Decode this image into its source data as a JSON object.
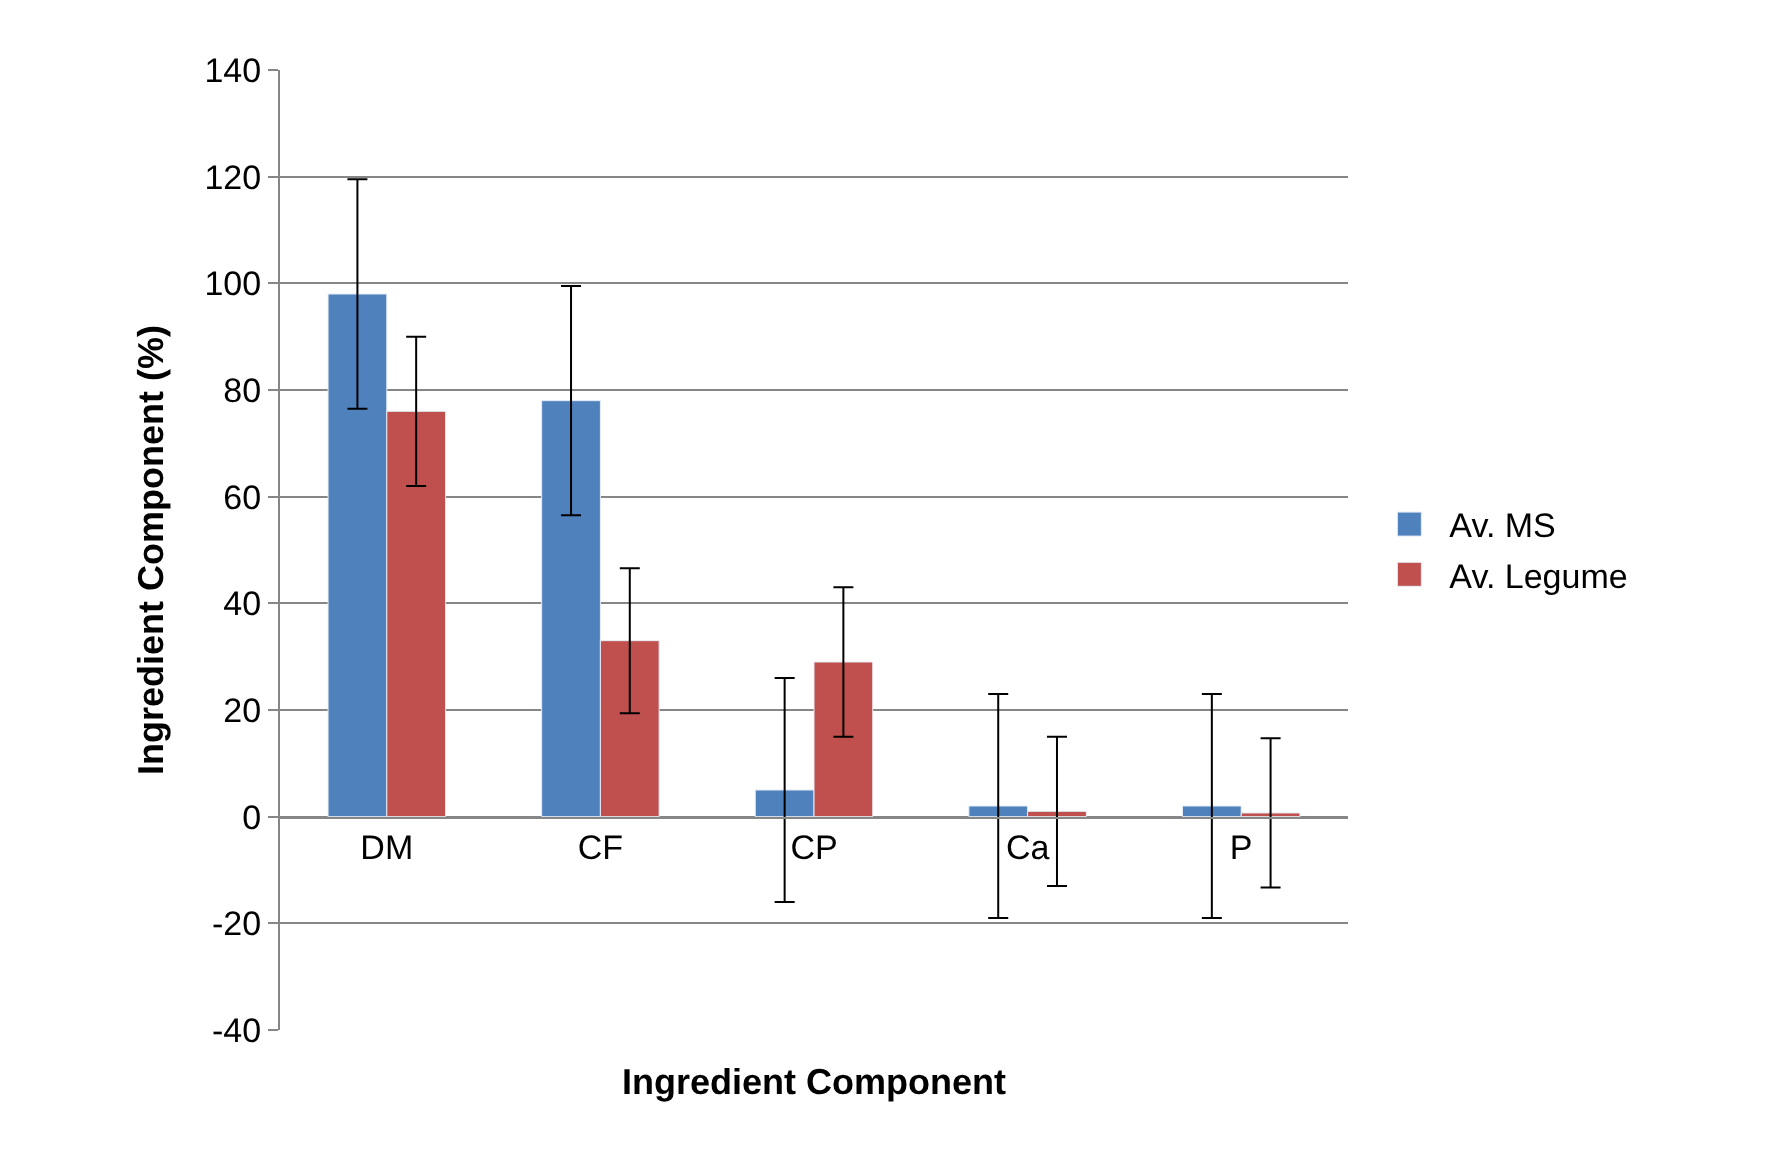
{
  "chart_data": {
    "type": "bar",
    "xlabel": "Ingredient Component",
    "ylabel": "Ingredient Component (%)",
    "categories": [
      "DM",
      "CF",
      "CP",
      "Ca",
      "P"
    ],
    "series": [
      {
        "name": "Av. MS",
        "color": "#4f81bd",
        "values": [
          98,
          78,
          5,
          2,
          2
        ],
        "errors": [
          21.5,
          21.5,
          21,
          21,
          21
        ]
      },
      {
        "name": "Av. Legume",
        "color": "#c0504d",
        "values": [
          76,
          33,
          29,
          1,
          0.7
        ],
        "errors": [
          14,
          13.6,
          14,
          14,
          14
        ]
      }
    ],
    "ylim": [
      -40,
      140
    ],
    "yticks": [
      -40,
      -20,
      0,
      20,
      40,
      60,
      80,
      100,
      120,
      140
    ],
    "grid": "y",
    "legend": "right"
  }
}
